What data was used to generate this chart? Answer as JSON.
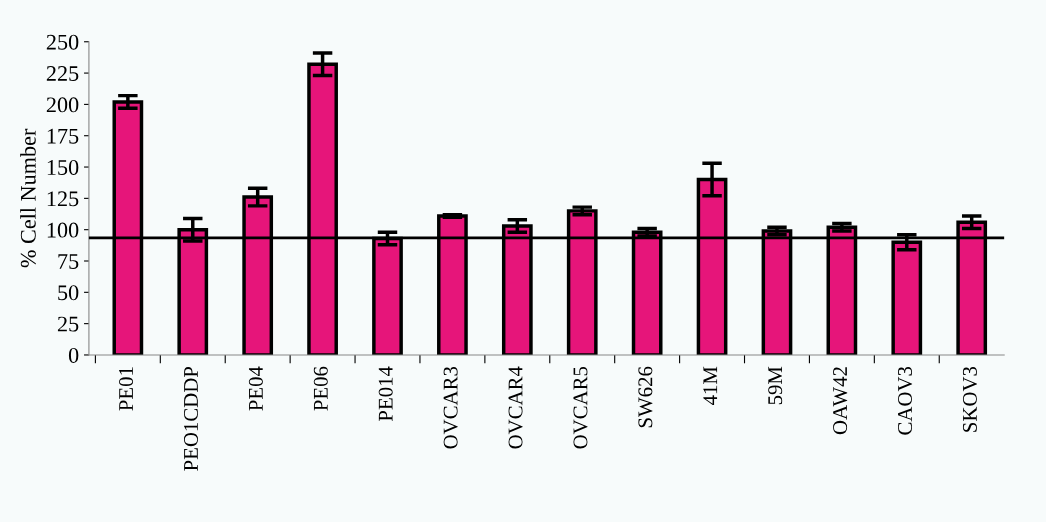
{
  "chart_data": {
    "type": "bar",
    "ylabel": "% Cell Number",
    "categories": [
      "PE01",
      "PEO1CDDP",
      "PE04",
      "PE06",
      "PE014",
      "OVCAR3",
      "OVCAR4",
      "OVCAR5",
      "SW626",
      "41M",
      "59M",
      "OAW42",
      "CAOV3",
      "SKOV3"
    ],
    "values": [
      202,
      100,
      126,
      232,
      93,
      111,
      103,
      115,
      98,
      140,
      99,
      102,
      90,
      106
    ],
    "errors": [
      5,
      9,
      7,
      9,
      5,
      1,
      5,
      3,
      3,
      13,
      3,
      3,
      6,
      5
    ],
    "color": "#e6157a",
    "ylim": [
      0,
      250
    ],
    "yticks": [
      0,
      25,
      50,
      75,
      100,
      125,
      150,
      175,
      200,
      225,
      250
    ],
    "ref_lines": [
      {
        "axis": "y",
        "value": 93.5,
        "color": "#000000"
      }
    ],
    "grid": false,
    "legend": false
  }
}
